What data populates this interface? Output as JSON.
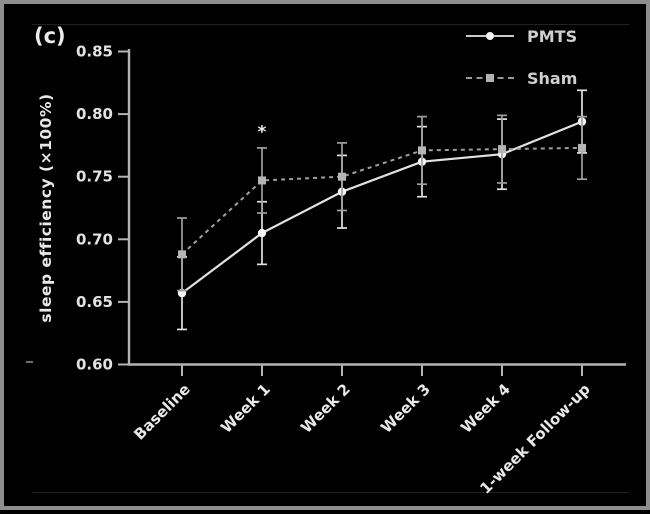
{
  "figure": {
    "panel_label": "(c)",
    "background": "#000000",
    "border_color": "#8e8e8e"
  },
  "legend": [
    {
      "label": "PMTS",
      "marker": "circle",
      "line_style": "solid"
    },
    {
      "label": "Sham",
      "marker": "square",
      "line_style": "dashed"
    }
  ],
  "colors": {
    "axis": "#b4b4b4",
    "tick_text": "#e2e2e2",
    "pmts_line": "#e2e2e2",
    "pmts_marker": "#f5f5f5",
    "sham_line": "#9f9f9f",
    "sham_marker": "#b5b5b5",
    "annotation": "#efefef"
  },
  "chart_data": {
    "type": "line",
    "title": "",
    "xlabel": "",
    "ylabel": "sleep efficiency (×100%)",
    "categories": [
      "Baseline",
      "Week 1",
      "Week 2",
      "Week 3",
      "Week 4",
      "1-week Follow-up"
    ],
    "y_tick_labels": [
      "0.60",
      "0.65",
      "0.70",
      "0.75",
      "0.80",
      "0.85"
    ],
    "ylim": [
      0.6,
      0.85
    ],
    "grid": false,
    "legend_position": "top-right",
    "error_bar_caps": true,
    "series": [
      {
        "name": "PMTS",
        "marker": "circle",
        "line_style": "solid",
        "values": [
          0.657,
          0.705,
          0.738,
          0.762,
          0.768,
          0.794
        ],
        "errors": [
          0.029,
          0.025,
          0.029,
          0.028,
          0.028,
          0.025
        ]
      },
      {
        "name": "Sham",
        "marker": "square",
        "line_style": "dashed",
        "values": [
          0.688,
          0.747,
          0.75,
          0.771,
          0.772,
          0.773
        ],
        "errors": [
          0.029,
          0.026,
          0.027,
          0.027,
          0.027,
          0.025
        ]
      }
    ],
    "annotations": [
      {
        "text": "*",
        "category": "Week 1",
        "value": 0.786
      }
    ]
  }
}
